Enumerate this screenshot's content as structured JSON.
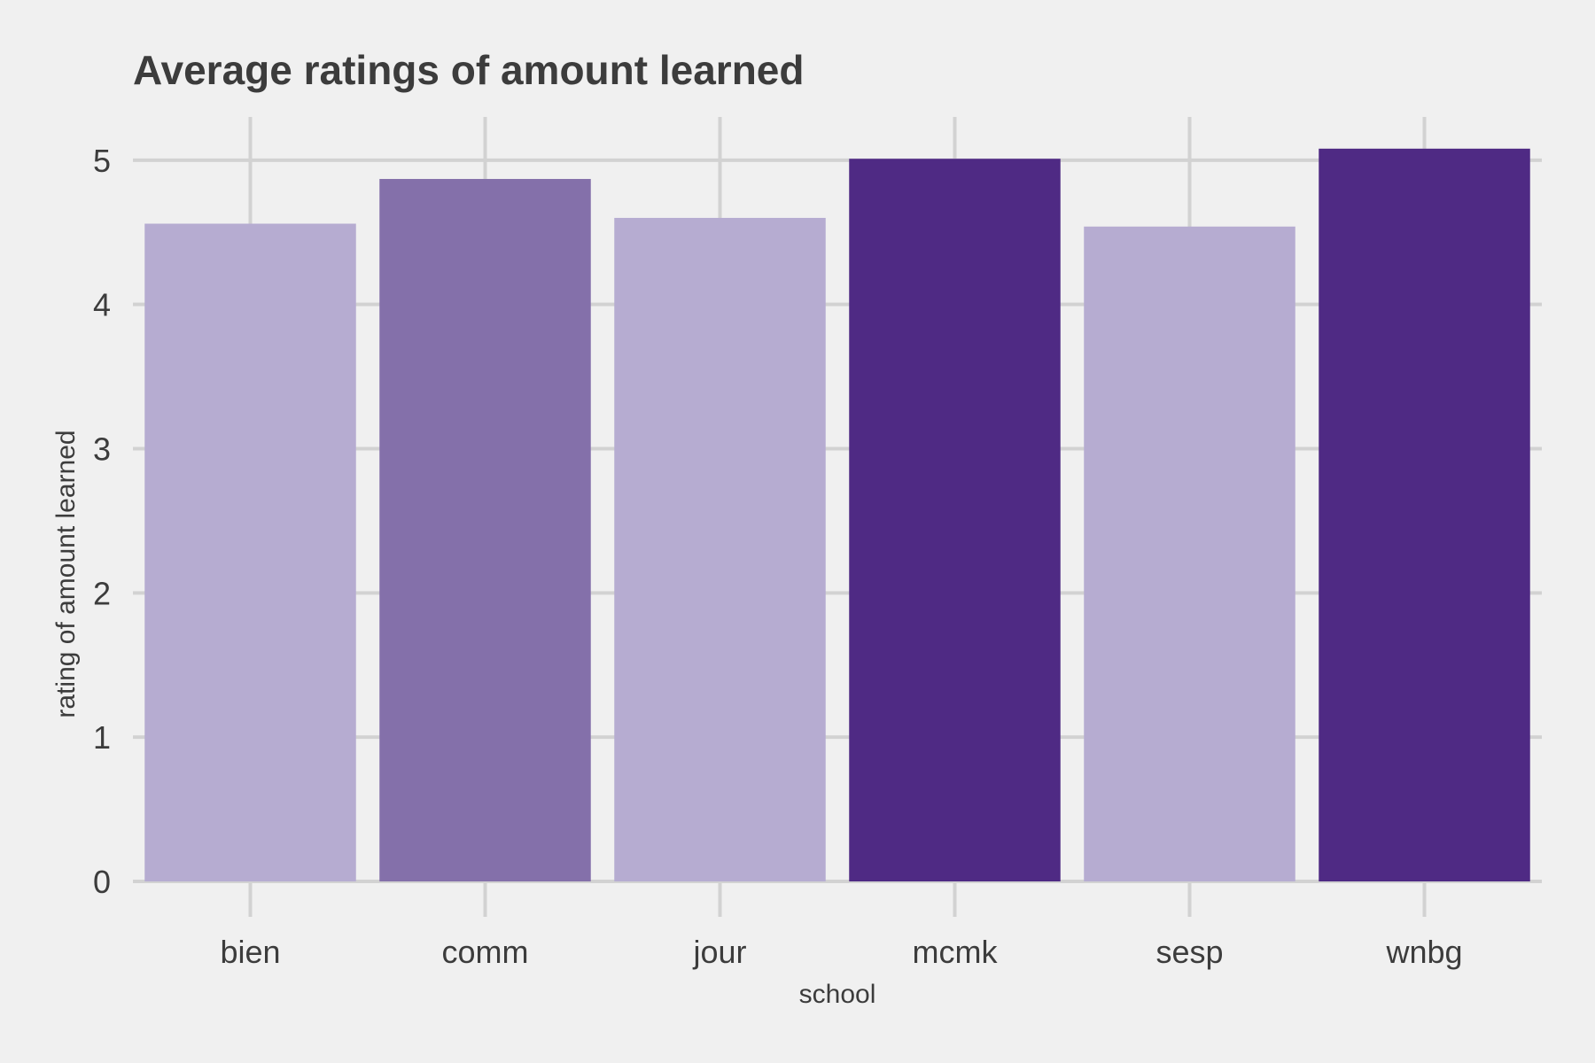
{
  "chart_data": {
    "type": "bar",
    "title": "Average ratings of amount learned",
    "xlabel": "school",
    "ylabel": "rating of amount learned",
    "categories": [
      "bien",
      "comm",
      "jour",
      "mcmk",
      "sesp",
      "wnbg"
    ],
    "values": [
      4.56,
      4.87,
      4.6,
      5.01,
      4.54,
      5.08
    ],
    "bar_colors": [
      "#b6acd1",
      "#8470aa",
      "#b6acd1",
      "#4f2a84",
      "#b6acd1",
      "#4f2a84"
    ],
    "ylim": [
      0,
      5.3
    ],
    "yticks": [
      0,
      1,
      2,
      3,
      4,
      5
    ],
    "grid": true,
    "legend": "none"
  },
  "colors": {
    "background": "#f0f0f0",
    "grid": "#d2d2d2",
    "text": "#3c3c3c"
  }
}
